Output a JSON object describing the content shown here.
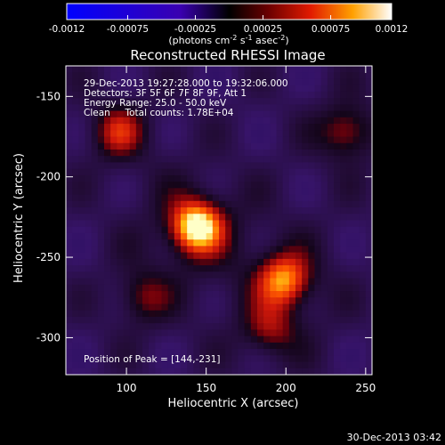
{
  "chart_data": {
    "type": "heatmap",
    "title": "Reconstructed RHESSI Image",
    "xlabel": "Heliocentric X (arcsec)",
    "ylabel": "Heliocentric Y (arcsec)",
    "xlim": [
      62,
      254
    ],
    "ylim": [
      -323,
      -131
    ],
    "x_ticks": [
      100,
      150,
      200,
      250
    ],
    "y_ticks": [
      -150,
      -200,
      -250,
      -300
    ],
    "colorbar": {
      "range": [
        -0.0012,
        0.0012
      ],
      "ticks": [
        "-0.0012",
        "-0.00075",
        "-0.00025",
        "0.00025",
        "0.00075",
        "0.0012"
      ],
      "unit_label": "(photons cm",
      "unit_sup1": "-2",
      "unit_mid": " s",
      "unit_sup2": "-1",
      "unit_mid2": " asec",
      "unit_sup3": "-2",
      "unit_end": ")"
    },
    "info": [
      "29-Dec-2013 19:27:28.000 to 19:32:06.000",
      "Detectors: 3F 5F 6F 7F 8F 9F, Att 1",
      "Energy Range: 25.0 - 50.0 keV",
      "Clean     Total counts: 1.78E+04"
    ],
    "peak_label": "Position of Peak = [144,-231]",
    "sources": [
      {
        "x": 144,
        "y": -231,
        "amplitude": 1.0
      },
      {
        "x": 199,
        "y": -264,
        "amplitude": 0.72
      },
      {
        "x": 95,
        "y": -172,
        "amplitude": 0.45
      },
      {
        "x": 238,
        "y": -172,
        "amplitude": 0.42
      },
      {
        "x": 190,
        "y": -295,
        "amplitude": 0.35
      },
      {
        "x": 110,
        "y": -275,
        "amplitude": 0.32
      }
    ],
    "grid": false
  },
  "footer_timestamp": "30-Dec-2013 03:42"
}
